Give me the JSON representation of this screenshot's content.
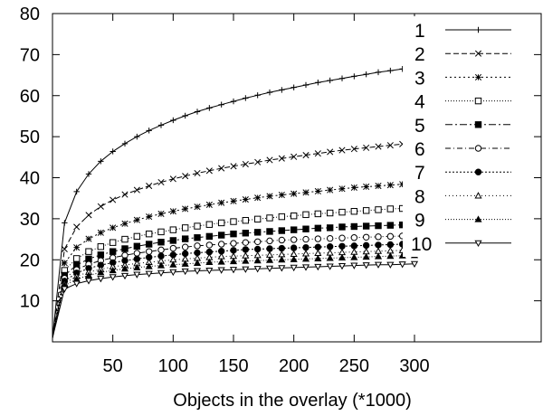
{
  "chart_data": {
    "type": "line",
    "title": "",
    "xlabel": "Objects in the overlay (*1000)",
    "ylabel": "",
    "xlim": [
      0,
      405
    ],
    "ylim": [
      0,
      80
    ],
    "xticks": [
      50,
      100,
      150,
      200,
      250,
      300
    ],
    "yticks": [
      10,
      20,
      30,
      40,
      50,
      60,
      70,
      80
    ],
    "grid": false,
    "legend": "top-right",
    "x": [
      0,
      10,
      20,
      30,
      40,
      50,
      60,
      70,
      80,
      90,
      100,
      110,
      120,
      130,
      140,
      150,
      160,
      170,
      180,
      190,
      200,
      210,
      220,
      230,
      240,
      250,
      260,
      270,
      280,
      290,
      300
    ],
    "series": [
      {
        "name": "1",
        "marker": "plus",
        "dash": "solid",
        "values": [
          1,
          29,
          36.6,
          40.9,
          44,
          46.4,
          48.3,
          50,
          51.5,
          52.8,
          54,
          55.1,
          56.1,
          57,
          57.8,
          58.6,
          59.4,
          60.1,
          60.8,
          61.4,
          62,
          62.6,
          63.2,
          63.7,
          64.2,
          64.7,
          65.2,
          65.7,
          66.1,
          66.5,
          67
        ]
      },
      {
        "name": "2",
        "marker": "cross",
        "dash": "6,3",
        "values": [
          1,
          22.6,
          28,
          30.9,
          33,
          34.6,
          35.9,
          37,
          38,
          38.9,
          39.7,
          40.4,
          41.1,
          41.7,
          42.3,
          42.8,
          43.3,
          43.8,
          44.3,
          44.7,
          45.1,
          45.5,
          45.9,
          46.3,
          46.7,
          47,
          47.3,
          47.6,
          47.9,
          48.2,
          48.5
        ]
      },
      {
        "name": "3",
        "marker": "star",
        "dash": "2,3",
        "values": [
          1,
          19.2,
          23,
          25.1,
          26.6,
          27.8,
          28.8,
          29.7,
          30.5,
          31.2,
          31.8,
          32.4,
          32.9,
          33.4,
          33.9,
          34.3,
          34.7,
          35.1,
          35.5,
          35.8,
          36.1,
          36.4,
          36.7,
          37,
          37.3,
          37.6,
          37.8,
          38,
          38.2,
          38.4,
          38.6
        ]
      },
      {
        "name": "4",
        "marker": "square-open",
        "dash": "1,2",
        "values": [
          1,
          17.4,
          20.3,
          22,
          23.2,
          24.2,
          25,
          25.7,
          26.3,
          26.8,
          27.3,
          27.8,
          28.2,
          28.6,
          29,
          29.3,
          29.6,
          29.9,
          30.2,
          30.5,
          30.7,
          31,
          31.2,
          31.4,
          31.6,
          31.8,
          32,
          32.2,
          32.4,
          32.5,
          32.6
        ]
      },
      {
        "name": "5",
        "marker": "square-filled",
        "dash": "8,3,2,3",
        "values": [
          1,
          16.2,
          18.7,
          20.2,
          21.2,
          22,
          22.7,
          23.3,
          23.8,
          24.3,
          24.7,
          25.1,
          25.4,
          25.7,
          26,
          26.3,
          26.5,
          26.7,
          26.9,
          27.1,
          27.3,
          27.5,
          27.7,
          27.8,
          28,
          28.1,
          28.2,
          28.3,
          28.4,
          28.5,
          28.6
        ]
      },
      {
        "name": "6",
        "marker": "circle-open",
        "dash": "6,3,1,3",
        "values": [
          1,
          15.5,
          17.6,
          18.9,
          19.8,
          20.5,
          21.1,
          21.6,
          22,
          22.4,
          22.8,
          23.1,
          23.4,
          23.6,
          23.8,
          24,
          24.2,
          24.4,
          24.6,
          24.8,
          24.9,
          25,
          25.1,
          25.2,
          25.3,
          25.4,
          25.5,
          25.6,
          25.7,
          25.8,
          25.9
        ]
      },
      {
        "name": "7",
        "marker": "circle-filled",
        "dash": "2,2",
        "values": [
          1,
          14.8,
          16.8,
          17.9,
          18.7,
          19.3,
          19.8,
          20.2,
          20.6,
          20.9,
          21.2,
          21.5,
          21.7,
          21.9,
          22.1,
          22.3,
          22.5,
          22.6,
          22.7,
          22.8,
          22.9,
          23,
          23.1,
          23.2,
          23.3,
          23.4,
          23.5,
          23.6,
          23.7,
          23.8,
          23.9
        ]
      },
      {
        "name": "8",
        "marker": "triangle-open",
        "dash": "1,3",
        "values": [
          1,
          14.2,
          16,
          17,
          17.7,
          18.3,
          18.7,
          19.1,
          19.4,
          19.7,
          20,
          20.2,
          20.4,
          20.6,
          20.8,
          20.9,
          21,
          21.1,
          21.2,
          21.3,
          21.4,
          21.5,
          21.6,
          21.7,
          21.8,
          21.9,
          22,
          22.1,
          22.2,
          22.3,
          22.4
        ]
      },
      {
        "name": "9",
        "marker": "triangle-filled",
        "dash": "1,2",
        "values": [
          1,
          13.7,
          15.3,
          16.2,
          16.9,
          17.4,
          17.8,
          18.1,
          18.4,
          18.6,
          18.8,
          19,
          19.2,
          19.4,
          19.5,
          19.6,
          19.7,
          19.8,
          19.9,
          20,
          20.1,
          20.2,
          20.3,
          20.4,
          20.5,
          20.6,
          20.7,
          20.8,
          20.9,
          21,
          21.1
        ]
      },
      {
        "name": "10",
        "marker": "triangle-down",
        "dash": "solid",
        "values": [
          1,
          12.9,
          14.2,
          14.9,
          15.4,
          15.8,
          16.1,
          16.4,
          16.6,
          16.8,
          17,
          17.2,
          17.3,
          17.4,
          17.5,
          17.6,
          17.7,
          17.8,
          17.9,
          18,
          18.1,
          18.2,
          18.3,
          18.4,
          18.5,
          18.6,
          18.7,
          18.8,
          18.8,
          18.9,
          19
        ]
      }
    ]
  }
}
